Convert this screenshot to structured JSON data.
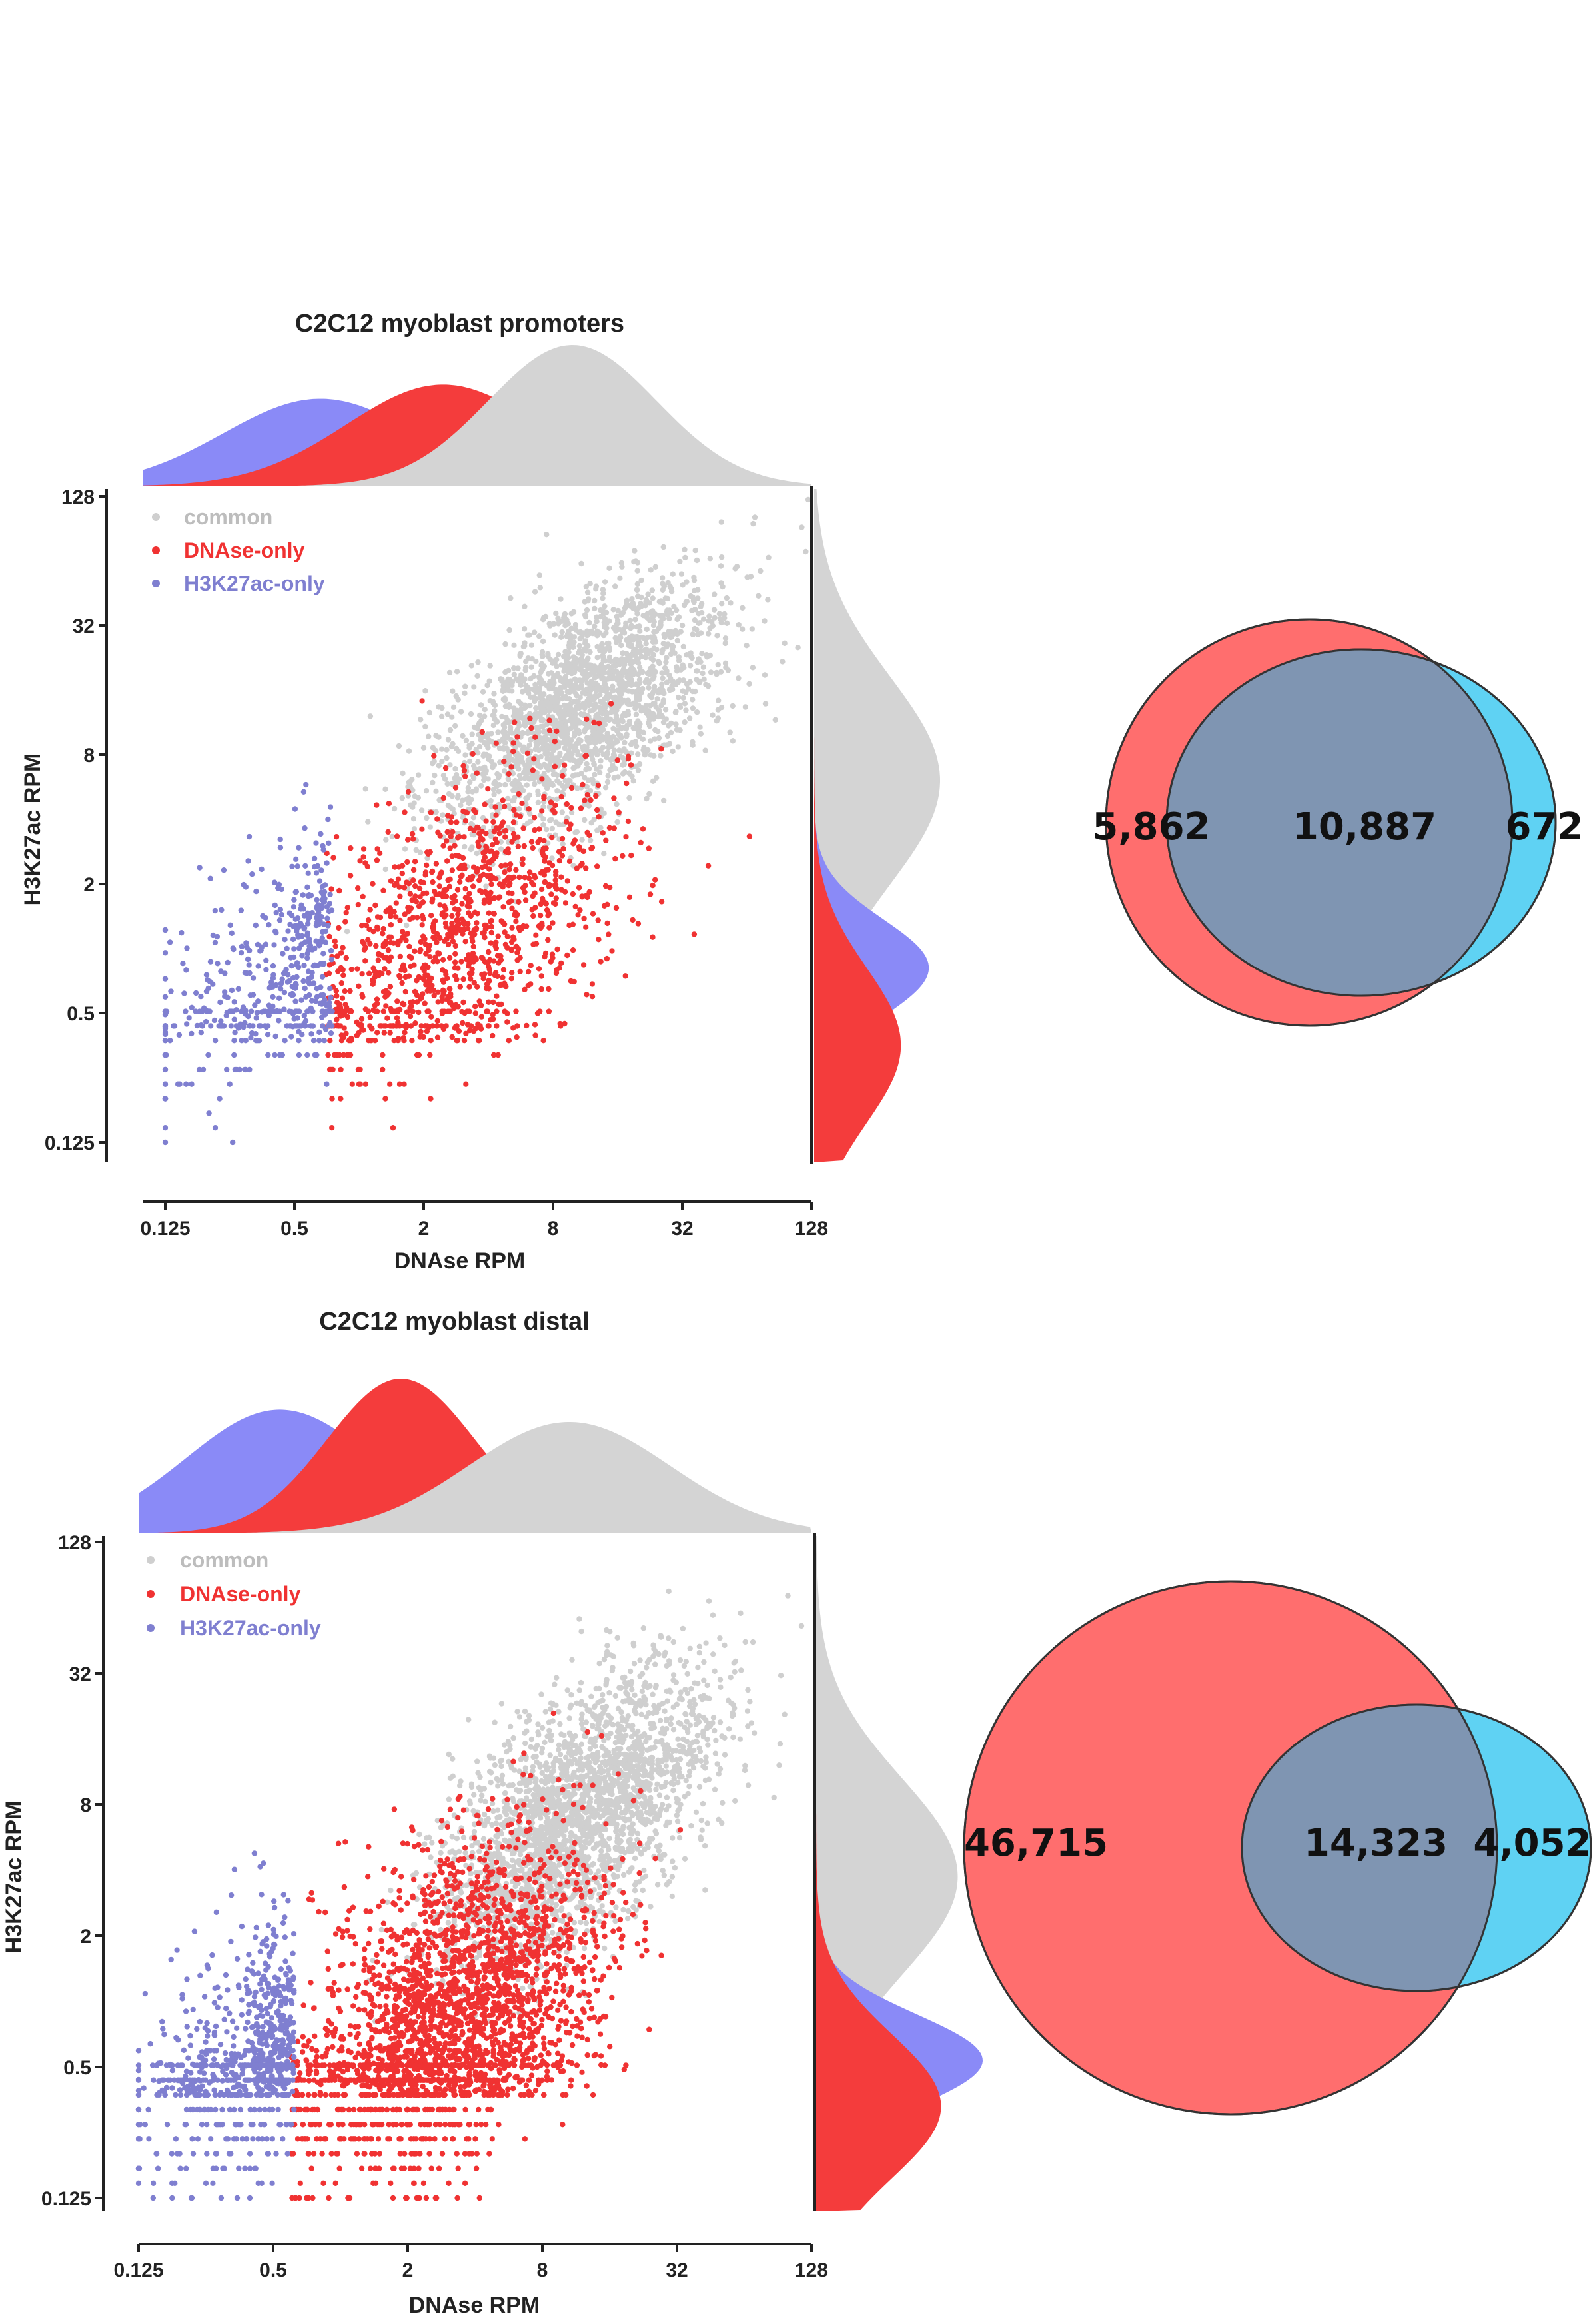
{
  "colors": {
    "common": "#cfcfcf",
    "dnase_only": "#f03232",
    "h3k27ac_only": "#7f7fd0",
    "density_blue": "#8a8af7",
    "venn_left": "#ff6e6e",
    "venn_right": "#5fd2f3",
    "venn_overlap": "#7f95b2"
  },
  "panels": [
    {
      "chart_data": {
        "type": "scatter",
        "title": "C2C12 myoblast promoters",
        "xlabel": "DNAse RPM",
        "ylabel": "H3K27ac RPM",
        "scale": "log2",
        "xlim": [
          0.125,
          128
        ],
        "ylim": [
          0.125,
          128
        ],
        "xticks": [
          "0.125",
          "0.5",
          "2",
          "8",
          "32",
          "128"
        ],
        "yticks": [
          "0.125",
          "0.5",
          "2",
          "8",
          "32",
          "128"
        ],
        "legend": {
          "placement": "top-left",
          "entries": [
            "common",
            "DNAse-only",
            "H3K27ac-only"
          ]
        },
        "series": [
          {
            "name": "common",
            "approx_points": 10887,
            "center_log2": [
              3.4,
              3.7
            ],
            "spread_log2": [
              1.1,
              1.0
            ],
            "rho": 0.6
          },
          {
            "name": "DNAse-only",
            "approx_points": 5862,
            "center_log2": [
              1.6,
              0.3
            ],
            "spread_log2": [
              1.2,
              1.3
            ],
            "rho": 0.5,
            "x_min": 0.7,
            "floor_y": 0.125
          },
          {
            "name": "H3K27ac-only",
            "approx_points": 672,
            "center_log2": [
              -1.2,
              -0.6
            ],
            "spread_log2": [
              1.1,
              1.2
            ],
            "rho": 0.5,
            "x_max": 0.75,
            "floor_y": 0.125
          }
        ],
        "marginal_x": [
          {
            "name": "H3K27ac-only",
            "mode_log2": -0.6,
            "sd_log2": 1.5,
            "height": 0.62
          },
          {
            "name": "DNAse-only",
            "mode_log2": 1.3,
            "sd_log2": 1.5,
            "height": 0.72
          },
          {
            "name": "common",
            "mode_log2": 3.3,
            "sd_log2": 1.3,
            "height": 1.0
          }
        ],
        "marginal_y": [
          {
            "name": "common",
            "mode_log2": 2.6,
            "sd_log2": 1.6,
            "height": 0.9
          },
          {
            "name": "H3K27ac-only",
            "mode_log2": -0.3,
            "sd_log2": 0.75,
            "height": 0.82
          },
          {
            "name": "DNAse-only",
            "mode_log2": -1.5,
            "sd_log2": 1.2,
            "height": 0.62
          }
        ]
      },
      "venn": {
        "left_only": "5,862",
        "overlap": "10,887",
        "right_only": "672"
      }
    },
    {
      "chart_data": {
        "type": "scatter",
        "title": "C2C12 myoblast distal",
        "xlabel": "DNAse RPM",
        "ylabel": "H3K27ac RPM",
        "scale": "log2",
        "xlim": [
          0.125,
          128
        ],
        "ylim": [
          0.125,
          128
        ],
        "xticks": [
          "0.125",
          "0.5",
          "2",
          "8",
          "32",
          "128"
        ],
        "yticks": [
          "0.125",
          "0.5",
          "2",
          "8",
          "32",
          "128"
        ],
        "legend": {
          "placement": "top-left",
          "entries": [
            "common",
            "DNAse-only",
            "H3K27ac-only"
          ]
        },
        "series": [
          {
            "name": "common",
            "approx_points": 14323,
            "center_log2": [
              3.5,
              2.8
            ],
            "spread_log2": [
              1.0,
              1.1
            ],
            "rho": 0.6
          },
          {
            "name": "DNAse-only",
            "approx_points": 46715,
            "center_log2": [
              1.6,
              -0.4
            ],
            "spread_log2": [
              1.1,
              1.4
            ],
            "rho": 0.45,
            "x_min": 0.6,
            "floor_y": 0.125
          },
          {
            "name": "H3K27ac-only",
            "approx_points": 4052,
            "center_log2": [
              -1.3,
              -1.2
            ],
            "spread_log2": [
              0.9,
              1.1
            ],
            "rho": 0.4,
            "x_max": 0.62,
            "floor_y": 0.125
          }
        ],
        "marginal_x": [
          {
            "name": "H3K27ac-only",
            "mode_log2": -0.9,
            "sd_log2": 1.4,
            "height": 0.8
          },
          {
            "name": "DNAse-only",
            "mode_log2": 0.9,
            "sd_log2": 1.1,
            "height": 1.0
          },
          {
            "name": "common",
            "mode_log2": 3.4,
            "sd_log2": 1.5,
            "height": 0.72
          }
        ],
        "marginal_y": [
          {
            "name": "common",
            "mode_log2": 1.9,
            "sd_log2": 1.5,
            "height": 0.85
          },
          {
            "name": "H3K27ac-only",
            "mode_log2": -0.9,
            "sd_log2": 0.7,
            "height": 1.0
          },
          {
            "name": "DNAse-only",
            "mode_log2": -1.6,
            "sd_log2": 1.1,
            "height": 0.75
          }
        ]
      },
      "venn": {
        "left_only": "46,715",
        "overlap": "14,323",
        "right_only": "4,052"
      }
    }
  ]
}
